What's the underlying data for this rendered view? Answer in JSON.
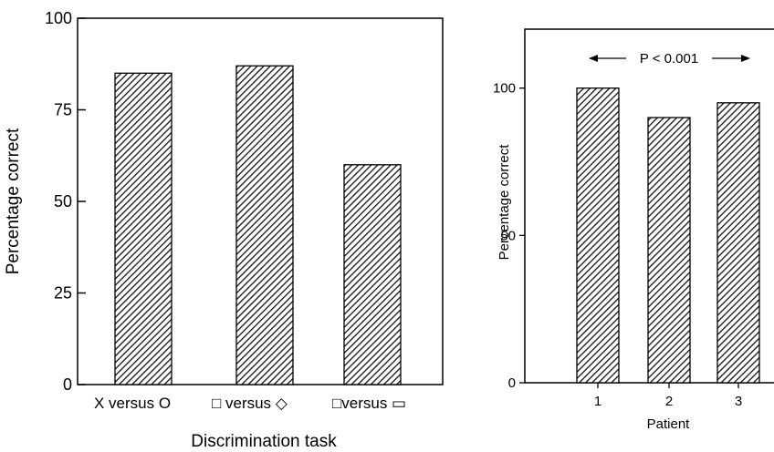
{
  "chart_data": [
    {
      "type": "bar",
      "categories": [
        "X versus O",
        "□ versus ◇",
        "□versus ▭"
      ],
      "values": [
        85,
        87,
        60
      ],
      "ylabel": "Percentage correct",
      "xlabel": "Discrimination task",
      "ylim": [
        0,
        100
      ],
      "yticks": [
        "0",
        "25",
        "50",
        "75",
        "100"
      ],
      "grid": false,
      "bar_pattern": "diagonal hatch"
    },
    {
      "type": "bar",
      "categories": [
        "1",
        "2",
        "3"
      ],
      "values": [
        100,
        90,
        95
      ],
      "ylabel": "Percentage correct",
      "xlabel": "Patient",
      "ylim": [
        0,
        120
      ],
      "yticks": [
        "0",
        "50",
        "100"
      ],
      "annotation": "P < 0.001",
      "grid": false,
      "bar_pattern": "diagonal hatch"
    }
  ],
  "colors": {
    "bar_fill": "#5a5a5a",
    "hatch": "#000000",
    "axis": "#000000"
  }
}
